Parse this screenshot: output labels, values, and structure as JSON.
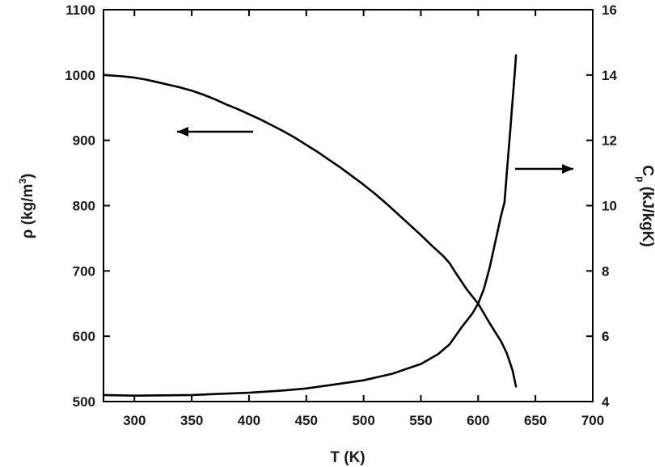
{
  "chart_data": {
    "type": "line",
    "xlabel": "T (K)",
    "ylabel_left": {
      "base": "ρ (kg/m",
      "sup": "3",
      "close": ")"
    },
    "ylabel_right": {
      "base": "C",
      "sub": "p",
      "rest": " (kJ/kgK)"
    },
    "xlim": [
      273,
      700
    ],
    "ylim_left": [
      500,
      1100
    ],
    "ylim_right": [
      4,
      16
    ],
    "xticks": [
      300,
      350,
      400,
      450,
      500,
      550,
      600,
      650,
      700
    ],
    "yticks_left": [
      500,
      600,
      700,
      800,
      900,
      1000,
      1100
    ],
    "yticks_right": [
      4,
      6,
      8,
      10,
      12,
      14,
      16
    ],
    "grid": false,
    "series": [
      {
        "axis": "left",
        "arrow": "left",
        "x": [
          273,
          290,
          300,
          310,
          320,
          330,
          340,
          350,
          360,
          370,
          380,
          390,
          400,
          410,
          420,
          430,
          440,
          450,
          460,
          470,
          480,
          490,
          500,
          510,
          520,
          530,
          540,
          550,
          560,
          570,
          575,
          580,
          590,
          600,
          610,
          620,
          625,
          630,
          633
        ],
        "y": [
          1000,
          998,
          996,
          993,
          989,
          985,
          981,
          976,
          970,
          963,
          955,
          948,
          940,
          932,
          923,
          914,
          904,
          893,
          882,
          870,
          858,
          845,
          832,
          818,
          803,
          787,
          771,
          755,
          738,
          722,
          712,
          698,
          672,
          650,
          620,
          592,
          574,
          548,
          523
        ]
      },
      {
        "axis": "right",
        "arrow": "right",
        "x": [
          273,
          300,
          350,
          400,
          430,
          450,
          470,
          500,
          525,
          550,
          565,
          575,
          585,
          595,
          600,
          605,
          610,
          615,
          620,
          623,
          625,
          628,
          630,
          632,
          633
        ],
        "y": [
          4.2,
          4.18,
          4.2,
          4.27,
          4.34,
          4.4,
          4.5,
          4.65,
          4.85,
          5.15,
          5.45,
          5.75,
          6.25,
          6.7,
          7.0,
          7.45,
          8.1,
          8.9,
          9.7,
          10.1,
          11.0,
          12.3,
          13.2,
          14.1,
          14.6
        ]
      }
    ]
  }
}
